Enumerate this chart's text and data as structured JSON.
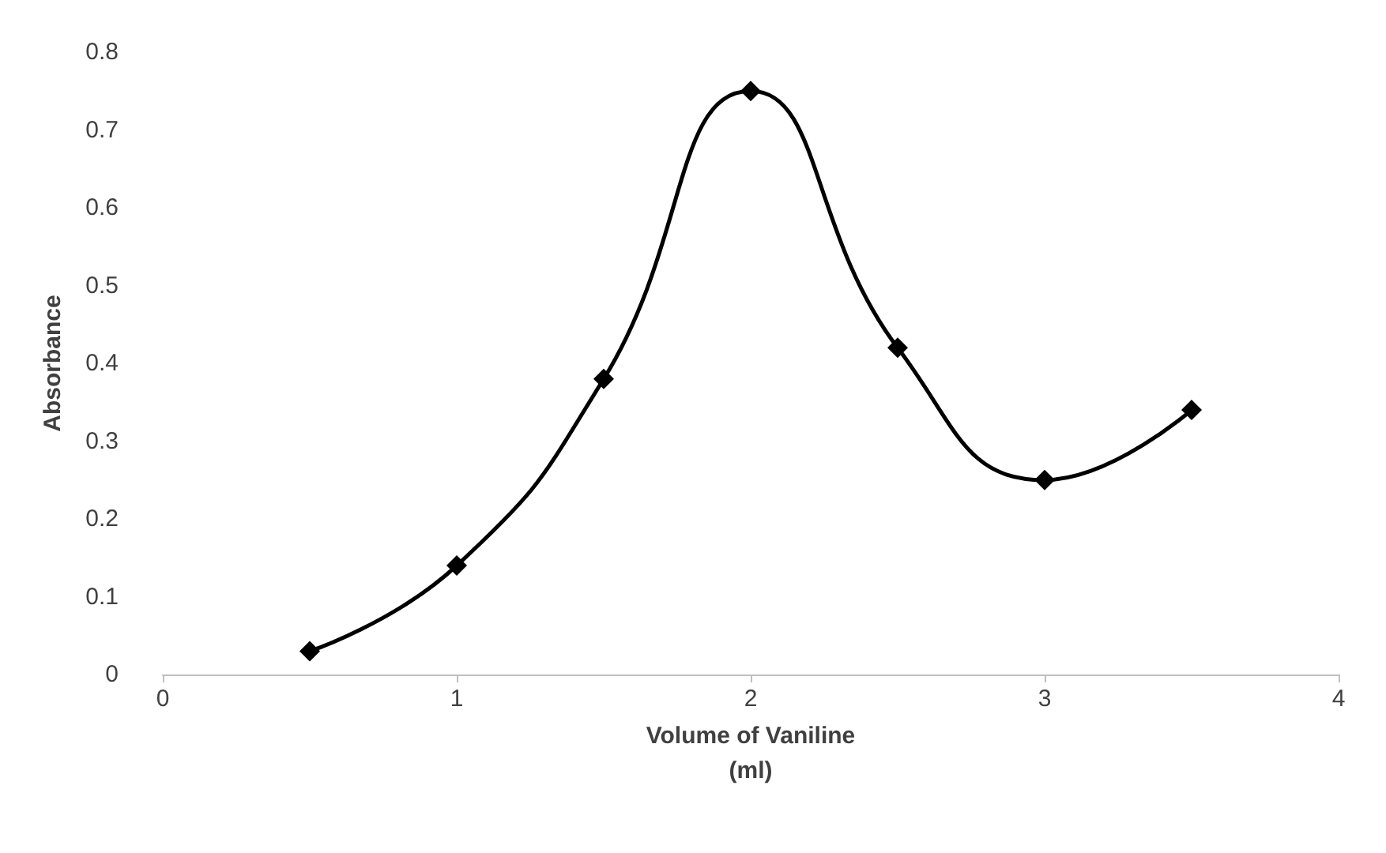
{
  "chart_data": {
    "type": "line",
    "xlabel": "Volume of Vaniline\n(ml)",
    "ylabel": "Absorbance",
    "x": [
      0.5,
      1,
      1.5,
      2,
      2.5,
      3,
      3.5
    ],
    "series": [
      {
        "color": "#000000",
        "values": [
          0.03,
          0.14,
          0.38,
          0.75,
          0.42,
          0.25,
          0.34
        ]
      }
    ],
    "xlim": [
      0,
      4
    ],
    "xticks": [
      0,
      1,
      2,
      3,
      4
    ],
    "ylim": [
      0,
      0.8
    ],
    "yticks": [
      0,
      0.1,
      0.2,
      0.3,
      0.4,
      0.5,
      0.6,
      0.7,
      0.8
    ],
    "grid": false,
    "marker": "diamond",
    "line_style": "solid"
  }
}
